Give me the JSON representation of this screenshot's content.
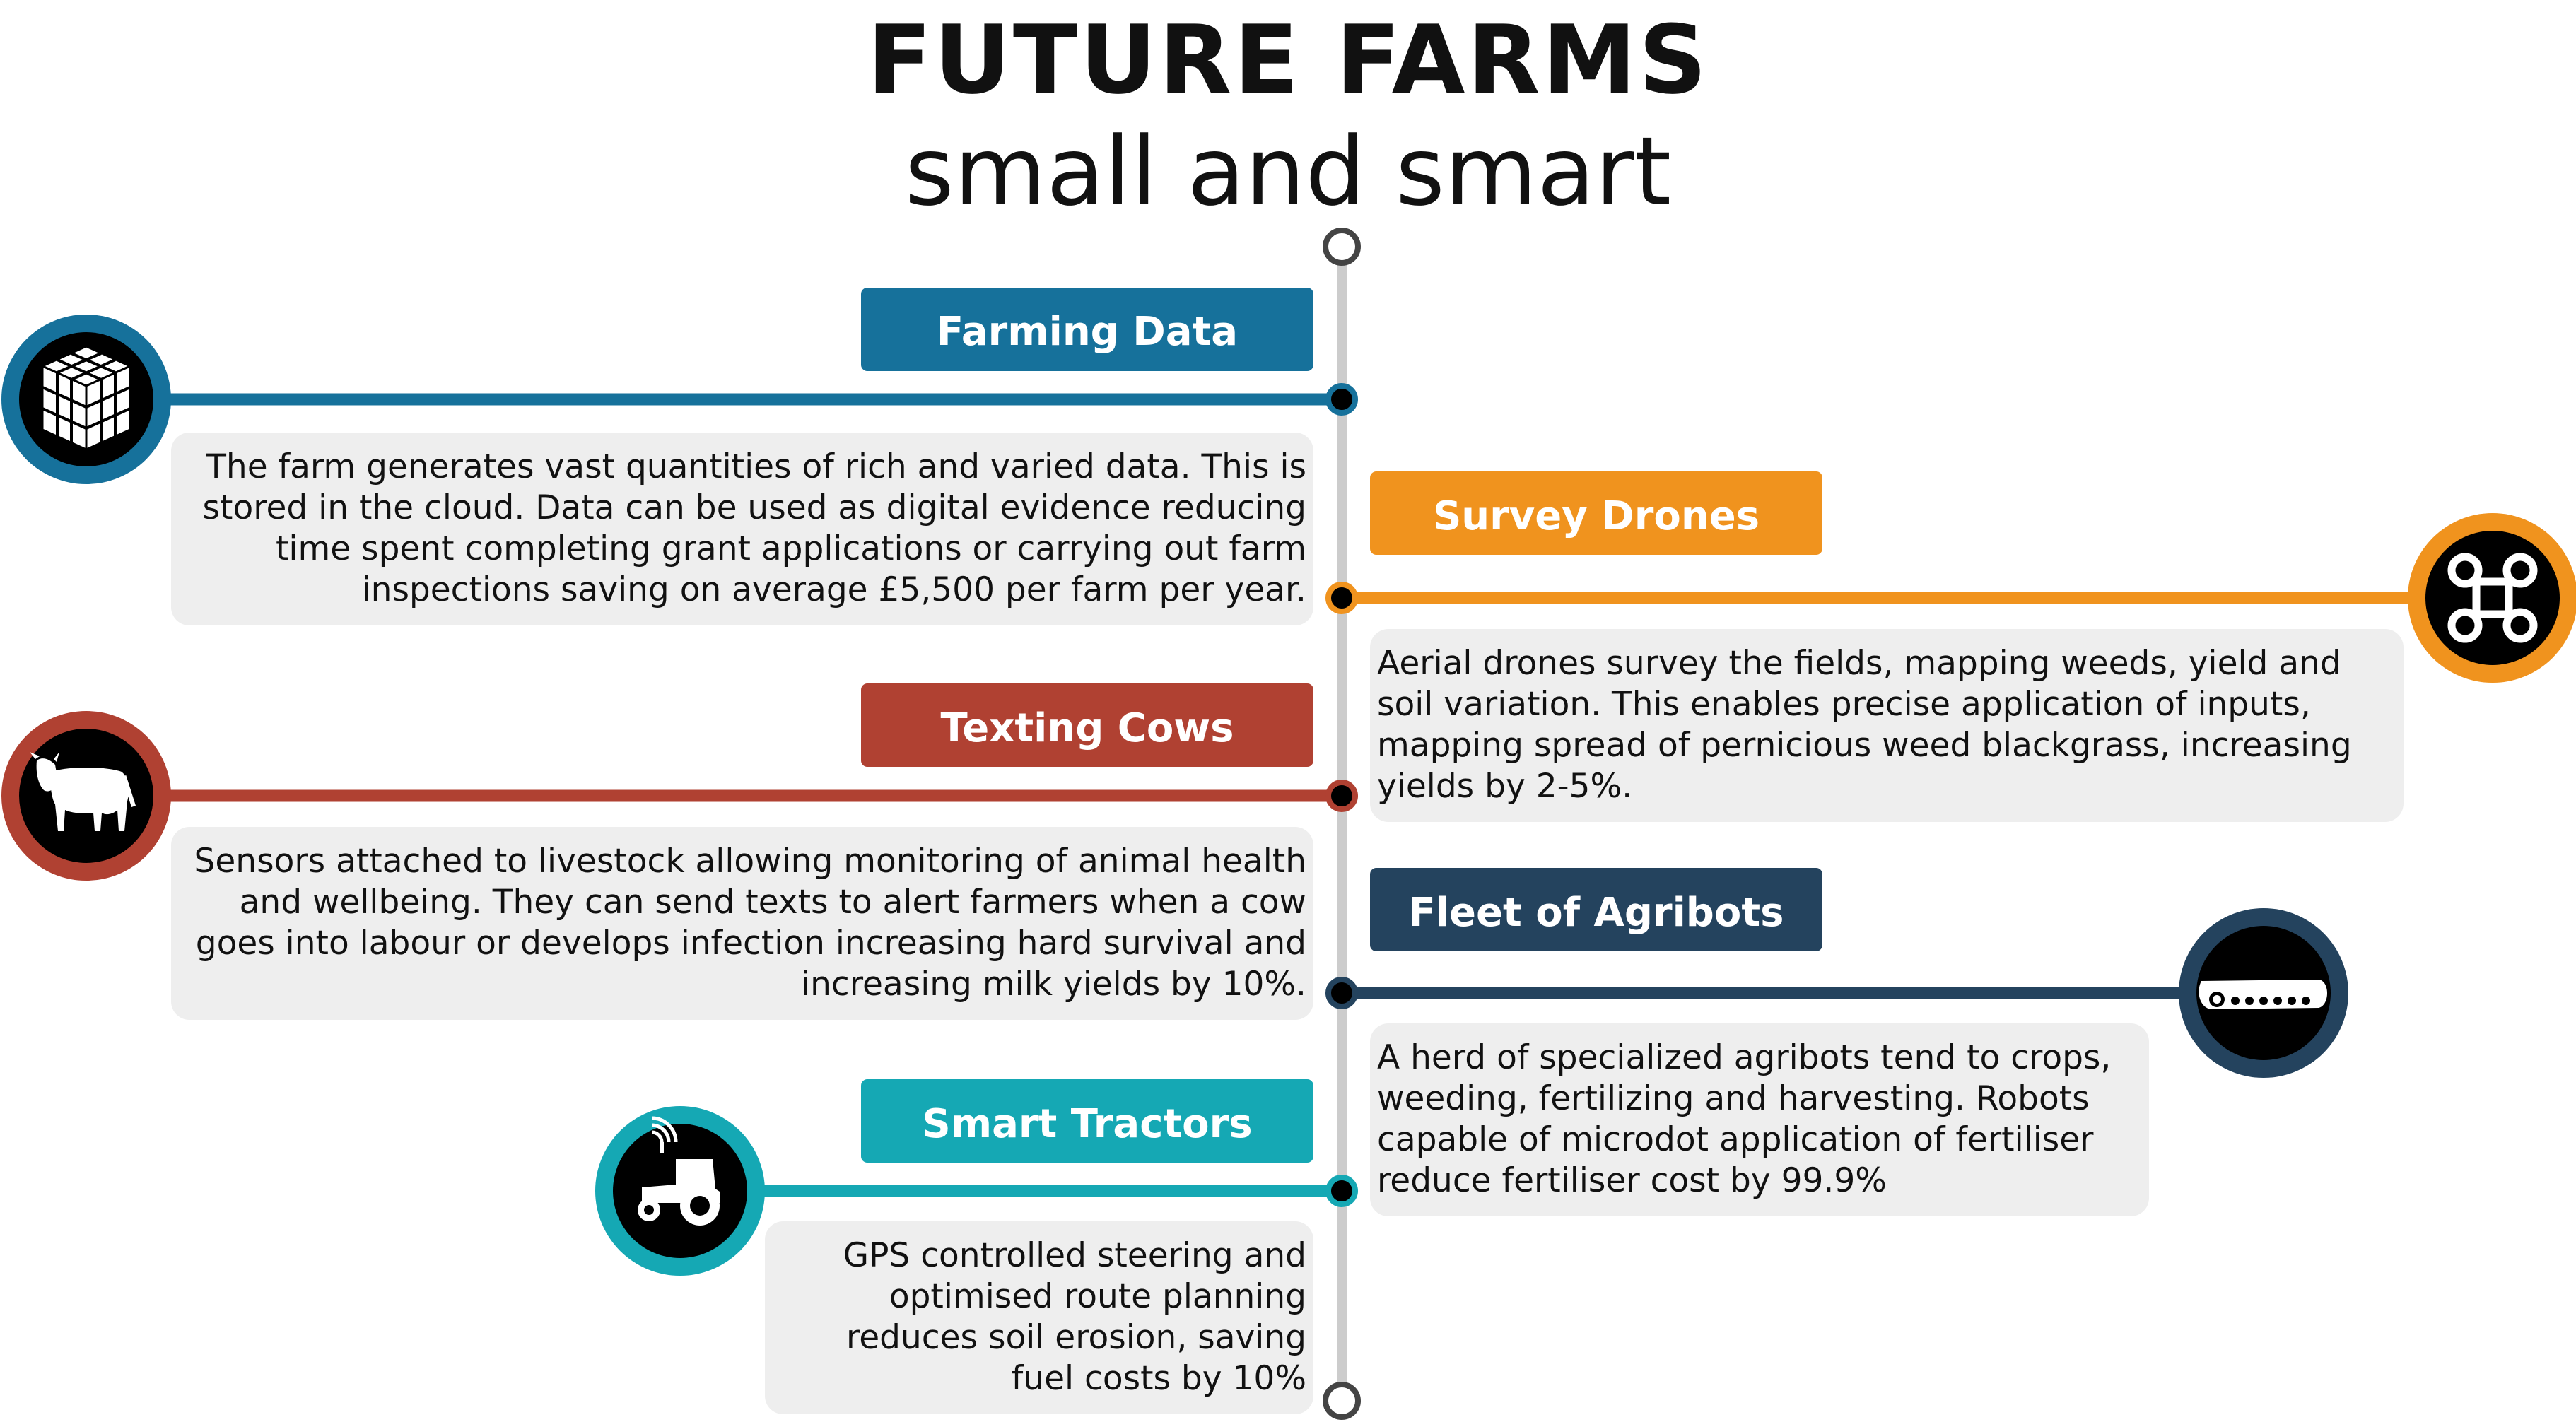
{
  "title": "FUTURE FARMS",
  "subtitle": "small and smart",
  "colors": {
    "farming_data": "#16719b",
    "survey_drones": "#f0931e",
    "texting_cows": "#b04132",
    "fleet_of_agribots": "#24435e",
    "smart_tractors": "#15a8b4",
    "spine": "#cccccc",
    "text_box": "#eeeeee"
  },
  "sections": [
    {
      "key": "farming_data",
      "label": "Farming Data",
      "icon": "data-cube-icon",
      "text": "The farm generates vast quantities of rich and varied data. This is\nstored in the cloud. Data can be used as digital evidence reducing\ntime spent completing grant applications or carrying out farm\ninspections saving on average £5,500 per farm per year."
    },
    {
      "key": "survey_drones",
      "label": "Survey Drones",
      "icon": "command-key-icon",
      "text": "Aerial drones survey the fields, mapping weeds, yield and\nsoil variation. This enables precise application of inputs,\nmapping spread of pernicious weed blackgrass, increasing\nyields by 2-5%."
    },
    {
      "key": "texting_cows",
      "label": "Texting Cows",
      "icon": "cow-icon",
      "text": "Sensors attached to livestock allowing monitoring of animal health\nand wellbeing. They can send texts to alert farmers when a cow\ngoes into labour or develops infection increasing hard survival and\nincreasing milk yields by 10%."
    },
    {
      "key": "fleet_of_agribots",
      "label": "Fleet of Agribots",
      "icon": "tracked-robot-icon",
      "text": "A herd of specialized agribots tend to crops,\nweeding, fertilizing and harvesting. Robots\ncapable of microdot application of fertiliser\nreduce fertiliser cost by 99.9%"
    },
    {
      "key": "smart_tractors",
      "label": "Smart Tractors",
      "icon": "wifi-tractor-icon",
      "text": "GPS controlled steering and\noptimised route planning\nreduces soil erosion, saving\nfuel costs by 10%"
    }
  ]
}
